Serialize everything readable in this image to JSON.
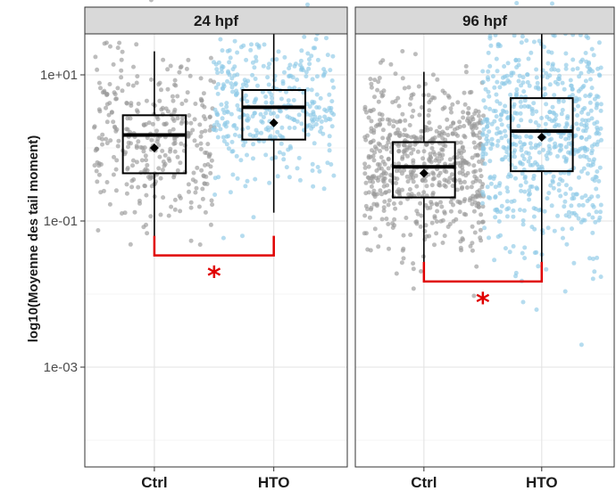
{
  "chart_data": {
    "type": "boxplot",
    "ylabel": "log10(Moyenne des tail moment)",
    "yscale": "log10",
    "ylim": [
      2e-05,
      150
    ],
    "yticks": [
      0.001,
      0.1,
      10
    ],
    "ytick_labels": [
      "1e-03",
      "1e-01",
      "1e+01"
    ],
    "grid": true,
    "facets": [
      {
        "title": "24 hpf",
        "categories": [
          "Ctrl",
          "HTO"
        ],
        "boxes": [
          {
            "group": "Ctrl",
            "color": "#999999",
            "whisker_low": 0.05,
            "q1": 0.45,
            "median": 1.5,
            "q3": 2.8,
            "whisker_high": 21,
            "mean": 1.0,
            "n_points": 340
          },
          {
            "group": "HTO",
            "color": "#8ecae6",
            "whisker_low": 0.13,
            "q1": 1.3,
            "median": 3.6,
            "q3": 6.2,
            "whisker_high": 45,
            "mean": 2.2,
            "n_points": 360
          }
        ],
        "significance": {
          "label": "*",
          "color": "#e00000"
        }
      },
      {
        "title": "96 hpf",
        "categories": [
          "Ctrl",
          "HTO"
        ],
        "boxes": [
          {
            "group": "Ctrl",
            "color": "#999999",
            "whisker_low": 0.022,
            "q1": 0.21,
            "median": 0.55,
            "q3": 1.2,
            "whisker_high": 11,
            "mean": 0.45,
            "n_points": 620
          },
          {
            "group": "HTO",
            "color": "#8ecae6",
            "whisker_low": 0.024,
            "q1": 0.48,
            "median": 1.7,
            "q3": 4.8,
            "whisker_high": 38,
            "mean": 1.4,
            "n_points": 660
          }
        ],
        "significance": {
          "label": "*",
          "color": "#e00000"
        }
      }
    ]
  }
}
